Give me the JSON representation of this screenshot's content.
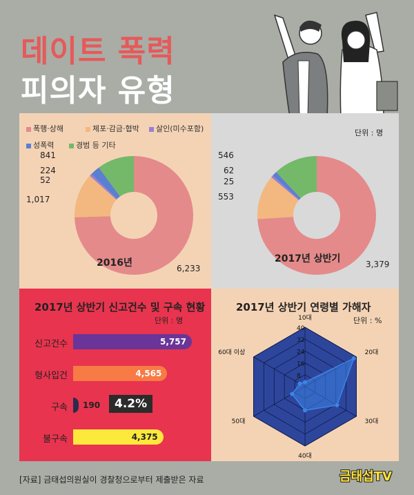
{
  "header": {
    "title_line1": "데이트 폭력",
    "title_line2": "피의자 유형"
  },
  "colors": {
    "accent_red": "#e55a5a",
    "assault": "#e48a8a",
    "arrest": "#f3b87f",
    "murder": "#9b7fd0",
    "sexual": "#5b7fd1",
    "other": "#74b86a",
    "reports": "#6a3498",
    "booked": "#f87a44",
    "detained": "#2b2b4f",
    "not_detained": "#fde83c",
    "radar": "#2d469c",
    "radar_series": "#3d84e6"
  },
  "legend": [
    "폭행·상해",
    "체포·감금·협박",
    "살인(미수포함)",
    "성폭력",
    "경범 등 기타"
  ],
  "unit_people": "단위 : 명",
  "unit_percent": "단위 : %",
  "footer": "[자료] 금태섭의원실이 경찰청으로부터 제출받은 자료",
  "logo": "금태섭TV",
  "chart_data": [
    {
      "type": "pie",
      "title": "2016년",
      "labels": [
        "폭행·상해",
        "체포·감금·협박",
        "살인(미수포함)",
        "성폭력",
        "경범 등 기타"
      ],
      "values": [
        6233,
        1017,
        52,
        224,
        841
      ],
      "value_labels": [
        "6,233",
        "1,017",
        "52",
        "224",
        "841"
      ]
    },
    {
      "type": "pie",
      "title": "2017년 상반기",
      "labels": [
        "폭행·상해",
        "체포·감금·협박",
        "살인(미수포함)",
        "성폭력",
        "경범 등 기타"
      ],
      "values": [
        3379,
        553,
        25,
        62,
        546
      ],
      "value_labels": [
        "3,379",
        "553",
        "25",
        "62",
        "546"
      ]
    },
    {
      "type": "bar",
      "title": "2017년 상반기 신고건수 및 구속 현황",
      "categories": [
        "신고건수",
        "형사입건",
        "구속",
        "불구속"
      ],
      "values": [
        5757,
        4565,
        190,
        4375
      ],
      "value_labels": [
        "5,757",
        "4,565",
        "190",
        "4,375"
      ],
      "annotation": "4.2%"
    },
    {
      "type": "radar",
      "title": "2017년 상반기 연령별 가해자",
      "categories": [
        "10대",
        "20대",
        "30대",
        "40대",
        "50대",
        "60대 이상"
      ],
      "ticks": [
        "8",
        "16",
        "24",
        "32",
        "40"
      ],
      "rmax": 40,
      "values": [
        3,
        38,
        25,
        16,
        10,
        4
      ]
    }
  ]
}
